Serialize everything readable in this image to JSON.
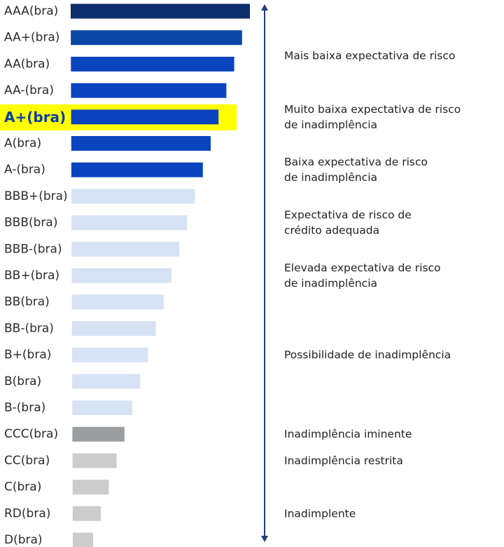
{
  "chart_data": {
    "type": "bar",
    "orientation": "horizontal",
    "highlight_category": "A+(bra)",
    "highlight_color": "#ffff00",
    "arrow_color": "#1f3f78",
    "categories": [
      "AAA(bra)",
      "AA+(bra)",
      "AA(bra)",
      "AA-(bra)",
      "A+(bra)",
      "A(bra)",
      "A-(bra)",
      "BBB+(bra)",
      "BBB(bra)",
      "BBB-(bra)",
      "BB+(bra)",
      "BB(bra)",
      "BB-(bra)",
      "B+(bra)",
      "B(bra)",
      "B-(bra)",
      "CCC(bra)",
      "CC(bra)",
      "C(bra)",
      "RD(bra)",
      "D(bra)"
    ],
    "values": [
      21,
      20,
      19,
      18,
      17,
      16,
      15,
      14,
      13,
      12,
      11,
      10,
      9,
      8,
      7,
      6,
      5,
      4,
      3,
      2,
      1
    ],
    "xlim": [
      0,
      21
    ],
    "colors": [
      "#0d2d6b",
      "#0b47a6",
      "#0b44bf",
      "#0b44bf",
      "#0b44bf",
      "#0b44bf",
      "#0b44bf",
      "#d7e3f4",
      "#d7e3f4",
      "#d7e3f4",
      "#d7e3f4",
      "#d7e3f4",
      "#d7e3f4",
      "#d7e3f4",
      "#d7e3f4",
      "#d7e3f4",
      "#9c9fa1",
      "#cccccc",
      "#cccccc",
      "#cccccc",
      "#cccccc"
    ],
    "descriptions": [
      {
        "lines": [
          "Mais baixa expectativa de risco"
        ],
        "category": "AA(bra)"
      },
      {
        "lines": [
          "Muito baixa expectativa de risco",
          "de inadimplência"
        ],
        "category": "A+(bra)"
      },
      {
        "lines": [
          "Baixa expectativa de risco",
          "de inadimplência"
        ],
        "category": "A-(bra)"
      },
      {
        "lines": [
          "Expectativa de risco de",
          "crédito adequada"
        ],
        "category": "BBB(bra)"
      },
      {
        "lines": [
          "Elevada expectativa de risco",
          "de inadimplência"
        ],
        "category": "BB+(bra)"
      },
      {
        "lines": [
          "Possibilidade de inadimplência"
        ],
        "category": "B+(bra)"
      },
      {
        "lines": [
          "Inadimplência iminente"
        ],
        "category": "CCC(bra)"
      },
      {
        "lines": [
          "Inadimplência restrita"
        ],
        "category": "CC(bra)"
      },
      {
        "lines": [
          "Inadimplente"
        ],
        "category": "RD(bra)"
      }
    ]
  }
}
